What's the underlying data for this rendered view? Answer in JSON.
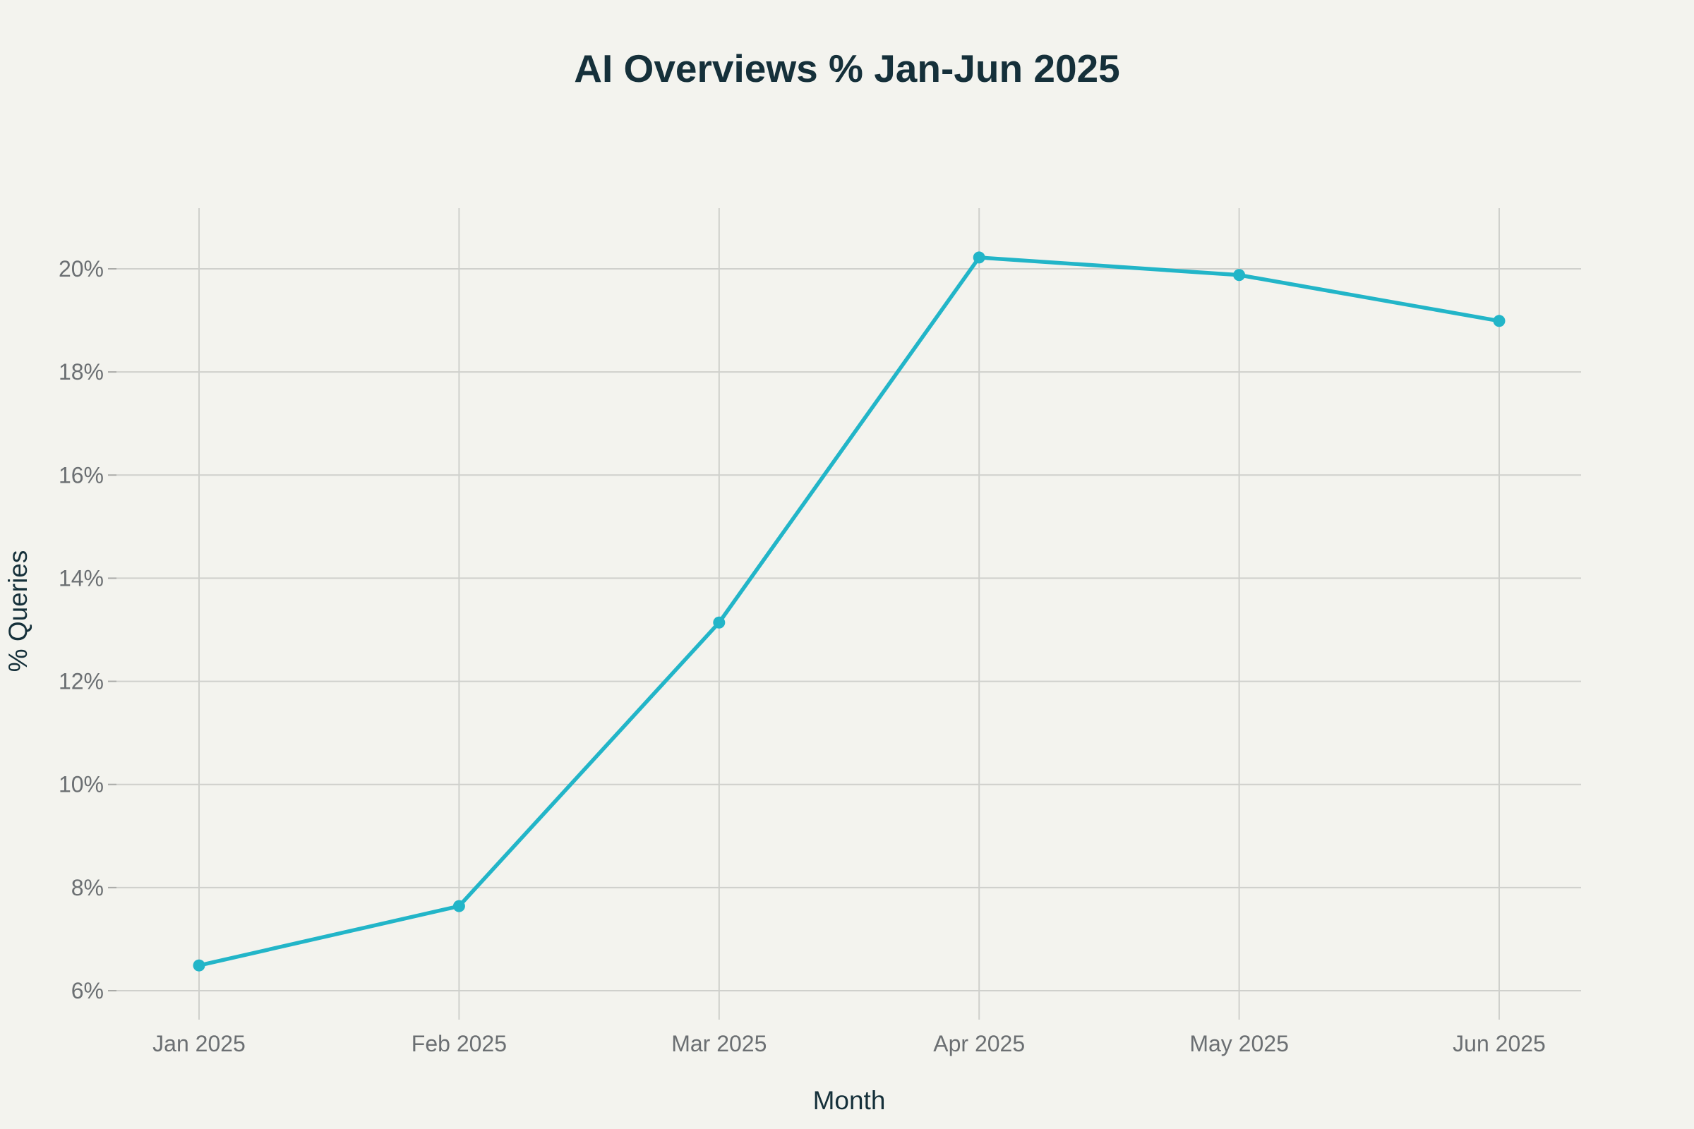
{
  "colors": {
    "background": "#f3f3ee",
    "series": "#22b5c8",
    "text_dark": "#15303a",
    "tick_text": "#6b6f72",
    "grid": "#cfd0cc"
  },
  "chart_data": {
    "type": "line",
    "title": "AI Overviews % Jan-Jun 2025",
    "xlabel": "Month",
    "ylabel": "% Queries",
    "categories": [
      "Jan 2025",
      "Feb 2025",
      "Mar 2025",
      "Apr 2025",
      "May 2025",
      "Jun 2025"
    ],
    "series": [
      {
        "values": [
          6.49,
          7.64,
          13.14,
          20.22,
          19.88,
          18.99
        ]
      }
    ],
    "y_ticks": [
      6,
      8,
      10,
      12,
      14,
      16,
      18,
      20
    ],
    "y_tick_labels": [
      "6%",
      "8%",
      "10%",
      "12%",
      "14%",
      "16%",
      "18%",
      "20%"
    ],
    "ylim": [
      5.6,
      21.2
    ],
    "grid": true,
    "legend": "none",
    "markers": true
  }
}
